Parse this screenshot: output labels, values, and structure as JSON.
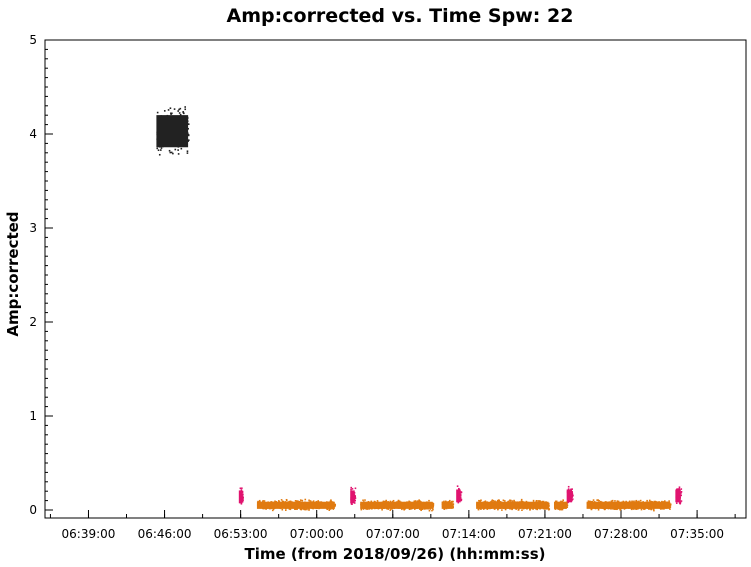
{
  "chart_data": {
    "type": "scatter",
    "title": "Amp:corrected vs. Time Spw: 22",
    "xlabel": "Time (from 2018/09/26) (hh:mm:ss)",
    "ylabel": "Amp:corrected",
    "xlim": [
      "06:35:00",
      "07:39:30"
    ],
    "ylim": [
      0,
      5
    ],
    "x_ticks": [
      "06:39:00",
      "06:46:00",
      "06:53:00",
      "07:00:00",
      "07:07:00",
      "07:14:00",
      "07:21:00",
      "07:28:00",
      "07:35:00"
    ],
    "y_ticks": [
      "0",
      "1",
      "2",
      "3",
      "4",
      "5"
    ],
    "grid": false,
    "legend": "none",
    "series": [
      {
        "color": "#222222",
        "segments": [
          {
            "x_start": "06:45:15",
            "x_end": "06:48:10",
            "y_center": 4.03,
            "y_spread": 0.45
          }
        ]
      },
      {
        "color": "#e0136f",
        "segments": [
          {
            "x_start": "06:52:50",
            "x_end": "06:53:10",
            "y_center": 0.14,
            "y_spread": 0.18
          },
          {
            "x_start": "07:03:05",
            "x_end": "07:03:30",
            "y_center": 0.14,
            "y_spread": 0.18
          },
          {
            "x_start": "07:12:50",
            "x_end": "07:13:15",
            "y_center": 0.15,
            "y_spread": 0.18
          },
          {
            "x_start": "07:23:00",
            "x_end": "07:23:30",
            "y_center": 0.15,
            "y_spread": 0.18
          },
          {
            "x_start": "07:33:00",
            "x_end": "07:33:30",
            "y_center": 0.15,
            "y_spread": 0.18
          }
        ]
      },
      {
        "color": "#e07a10",
        "segments": [
          {
            "x_start": "06:54:30",
            "x_end": "07:01:40",
            "y_center": 0.05,
            "y_spread": 0.1
          },
          {
            "x_start": "07:04:00",
            "x_end": "07:10:40",
            "y_center": 0.05,
            "y_spread": 0.1
          },
          {
            "x_start": "07:11:30",
            "x_end": "07:12:30",
            "y_center": 0.05,
            "y_spread": 0.1
          },
          {
            "x_start": "07:14:40",
            "x_end": "07:21:20",
            "y_center": 0.05,
            "y_spread": 0.1
          },
          {
            "x_start": "07:21:50",
            "x_end": "07:23:00",
            "y_center": 0.05,
            "y_spread": 0.1
          },
          {
            "x_start": "07:24:50",
            "x_end": "07:32:30",
            "y_center": 0.05,
            "y_spread": 0.1
          }
        ]
      }
    ]
  }
}
